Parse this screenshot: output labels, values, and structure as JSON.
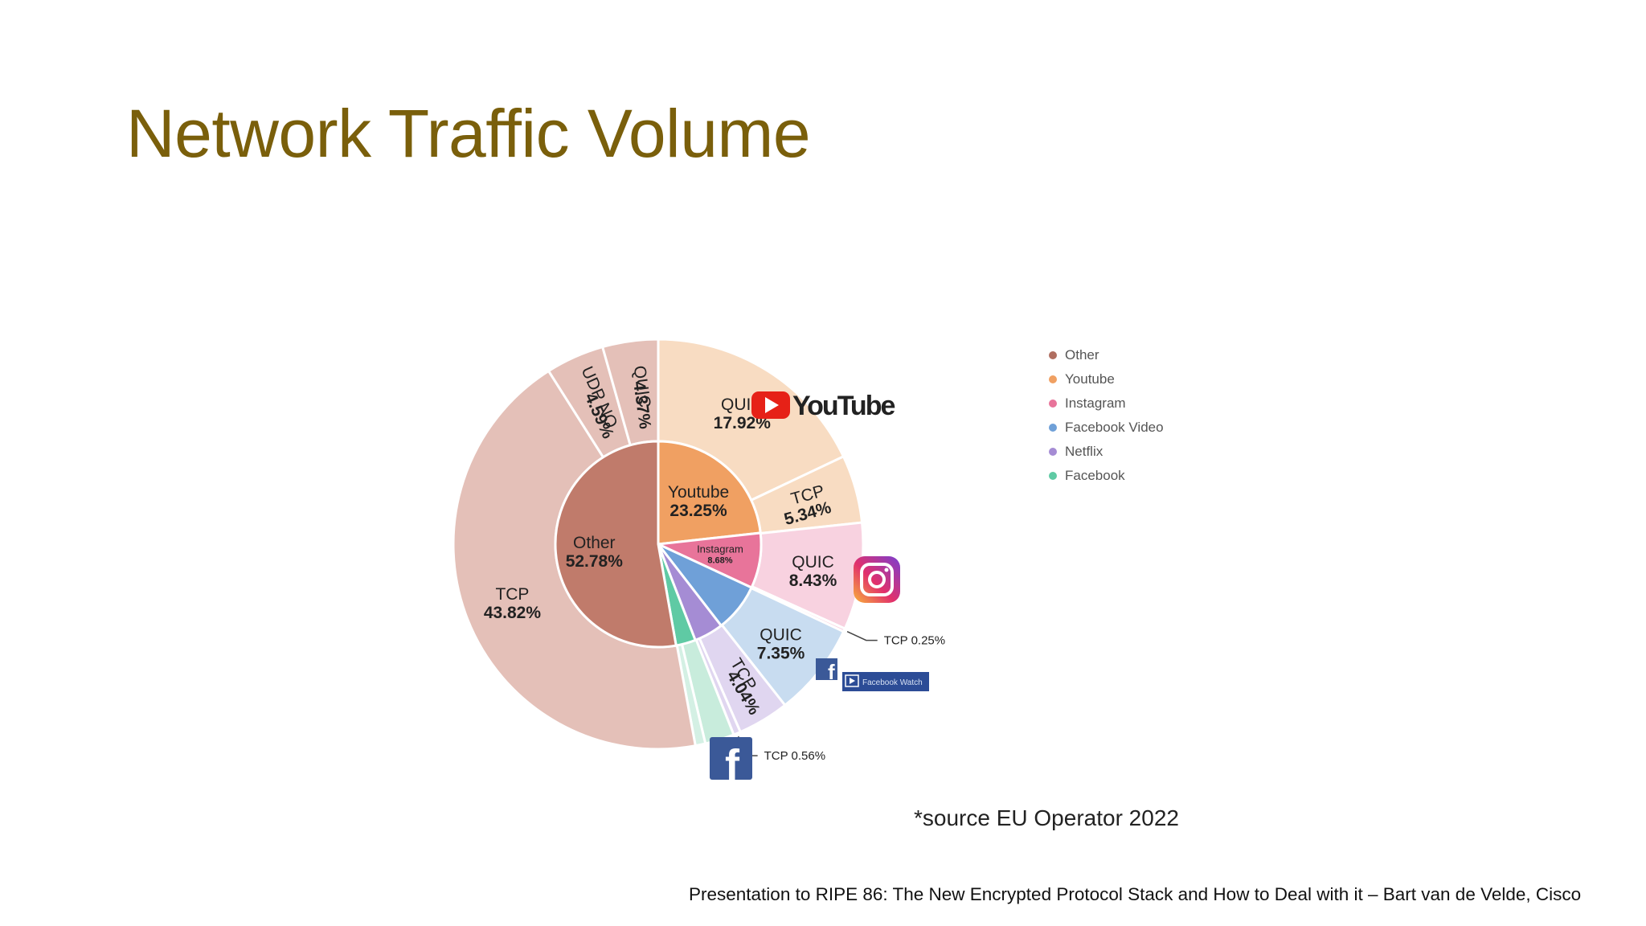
{
  "slide": {
    "title": "Network Traffic Volume",
    "source": "*source EU Operator 2022",
    "footer": "Presentation to RIPE 86: The New Encrypted Protocol Stack and How to Deal with it – Bart van de Velde, Cisco"
  },
  "logos": {
    "youtube": {
      "text": "YouTube",
      "icon": "youtube-play-icon"
    },
    "instagram": {
      "icon": "instagram-icon"
    },
    "facebook_watch": {
      "text": "Facebook Watch",
      "icon": "facebook-icon"
    },
    "facebook": {
      "icon": "facebook-icon"
    }
  },
  "chart_data": {
    "type": "pie",
    "legend": {
      "position": "right",
      "entries": [
        {
          "name": "Other",
          "color": "#b06e60"
        },
        {
          "name": "Youtube",
          "color": "#f0a062"
        },
        {
          "name": "Instagram",
          "color": "#e8749a"
        },
        {
          "name": "Facebook Video",
          "color": "#6fa0d8"
        },
        {
          "name": "Netflix",
          "color": "#a58cd4"
        },
        {
          "name": "Facebook",
          "color": "#5fcaa4"
        }
      ]
    },
    "inner": [
      {
        "category": "Youtube",
        "label": "Youtube",
        "value": 23.25,
        "value_label": "23.25%",
        "color": "#f0a062"
      },
      {
        "category": "Instagram",
        "label": "Instagram",
        "value": 8.68,
        "value_label": "8.68%",
        "color": "#e8749a"
      },
      {
        "category": "Facebook Video",
        "label": "",
        "value": 7.6,
        "value_label": "",
        "color": "#6fa0d8"
      },
      {
        "category": "Netflix",
        "label": "",
        "value": 4.6,
        "value_label": "",
        "color": "#a58cd4"
      },
      {
        "category": "Facebook",
        "label": "",
        "value": 3.09,
        "value_label": "",
        "color": "#5fcaa4"
      },
      {
        "category": "Other",
        "label": "Other",
        "value": 52.78,
        "value_label": "52.78%",
        "color": "#c07b6b"
      }
    ],
    "outer": [
      {
        "category": "Youtube",
        "label": "QUIC",
        "value": 17.92,
        "value_label": "17.92%",
        "color": "#f8dcc2"
      },
      {
        "category": "Youtube",
        "label": "TCP",
        "value": 5.34,
        "value_label": "5.34%",
        "color": "#f8dcc2"
      },
      {
        "category": "Instagram",
        "label": "QUIC",
        "value": 8.43,
        "value_label": "8.43%",
        "color": "#f8d2e0"
      },
      {
        "category": "Instagram",
        "label": "TCP 0.25%",
        "value": 0.25,
        "value_label": "",
        "color": "#f8d2e0"
      },
      {
        "category": "Facebook Video",
        "label": "QUIC",
        "value": 7.35,
        "value_label": "7.35%",
        "color": "#c8dcf0"
      },
      {
        "category": "Netflix",
        "label": "TCP",
        "value": 4.04,
        "value_label": "4.04%",
        "color": "#e0d6f0"
      },
      {
        "category": "Netflix",
        "label": "TCP 0.56%",
        "value": 0.56,
        "value_label": "",
        "color": "#e0d6f0"
      },
      {
        "category": "Facebook",
        "label": "",
        "value": 2.3,
        "value_label": "",
        "color": "#c8ecdc"
      },
      {
        "category": "Facebook",
        "label": "",
        "value": 0.79,
        "value_label": "",
        "color": "#d4f0e4"
      },
      {
        "category": "Other",
        "label": "TCP",
        "value": 43.82,
        "value_label": "43.82%",
        "color": "#e4c0b8"
      },
      {
        "category": "Other",
        "label": "UDP NQ",
        "value": 4.59,
        "value_label": "4.59%",
        "color": "#e4c0b8"
      },
      {
        "category": "Other",
        "label": "QUIC",
        "value": 4.37,
        "value_label": "4.37%",
        "color": "#e4c0b8"
      }
    ]
  }
}
